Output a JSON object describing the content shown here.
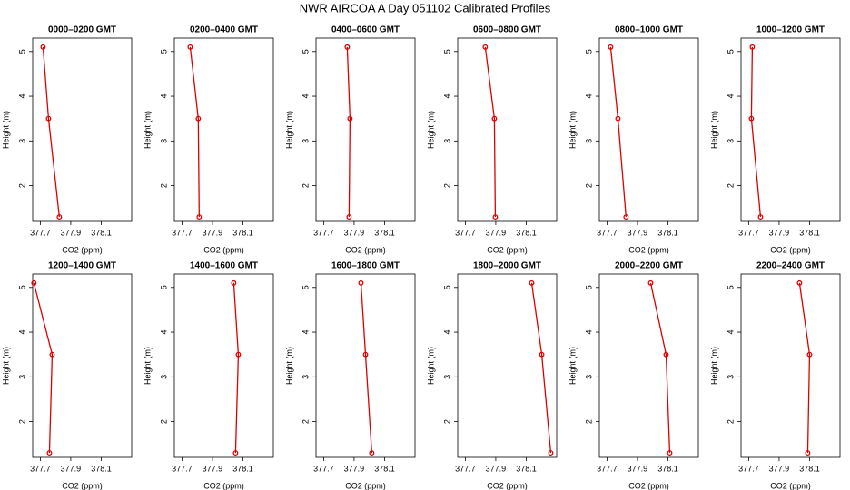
{
  "title": "NWR AIRCOA A  Day 051102  Calibrated Profiles",
  "chart_data": [
    {
      "type": "line",
      "title": "0000–0200 GMT",
      "x_label": "CO2 (ppm)",
      "y_label": "Height (m)",
      "x": [
        377.825,
        377.754,
        377.718
      ],
      "values": [
        1.3,
        3.5,
        5.1
      ],
      "color": "#dd0000",
      "xlim": [
        377.65,
        378.3
      ],
      "ylim": [
        1.2,
        5.3
      ],
      "xticks": [
        377.7,
        377.9,
        378.1
      ],
      "yticks": [
        2,
        3,
        4,
        5
      ]
    },
    {
      "type": "line",
      "title": "0200–0400 GMT",
      "x_label": "CO2 (ppm)",
      "y_label": "Height (m)",
      "x": [
        377.813,
        377.807,
        377.754
      ],
      "values": [
        1.3,
        3.5,
        5.1
      ],
      "color": "#dd0000",
      "xlim": [
        377.65,
        378.3
      ],
      "ylim": [
        1.2,
        5.3
      ],
      "xticks": [
        377.7,
        377.9,
        378.1
      ],
      "yticks": [
        2,
        3,
        4,
        5
      ]
    },
    {
      "type": "line",
      "title": "0400–0600 GMT",
      "x_label": "CO2 (ppm)",
      "y_label": "Height (m)",
      "x": [
        377.867,
        377.873,
        377.855
      ],
      "values": [
        1.3,
        3.5,
        5.1
      ],
      "color": "#dd0000",
      "xlim": [
        377.65,
        378.3
      ],
      "ylim": [
        1.2,
        5.3
      ],
      "xticks": [
        377.7,
        377.9,
        378.1
      ],
      "yticks": [
        2,
        3,
        4,
        5
      ]
    },
    {
      "type": "line",
      "title": "0600–0800 GMT",
      "x_label": "CO2 (ppm)",
      "y_label": "Height (m)",
      "x": [
        377.897,
        377.891,
        377.831
      ],
      "values": [
        1.3,
        3.5,
        5.1
      ],
      "color": "#dd0000",
      "xlim": [
        377.65,
        378.3
      ],
      "ylim": [
        1.2,
        5.3
      ],
      "xticks": [
        377.7,
        377.9,
        378.1
      ],
      "yticks": [
        2,
        3,
        4,
        5
      ]
    },
    {
      "type": "line",
      "title": "0800–1000 GMT",
      "x_label": "CO2 (ppm)",
      "y_label": "Height (m)",
      "x": [
        377.825,
        377.772,
        377.724
      ],
      "values": [
        1.3,
        3.5,
        5.1
      ],
      "color": "#dd0000",
      "xlim": [
        377.65,
        378.3
      ],
      "ylim": [
        1.2,
        5.3
      ],
      "xticks": [
        377.7,
        377.9,
        378.1
      ],
      "yticks": [
        2,
        3,
        4,
        5
      ]
    },
    {
      "type": "line",
      "title": "1000–1200 GMT",
      "x_label": "CO2 (ppm)",
      "y_label": "Height (m)",
      "x": [
        377.778,
        377.718,
        377.724
      ],
      "values": [
        1.3,
        3.5,
        5.1
      ],
      "color": "#dd0000",
      "xlim": [
        377.65,
        378.3
      ],
      "ylim": [
        1.2,
        5.3
      ],
      "xticks": [
        377.7,
        377.9,
        378.1
      ],
      "yticks": [
        2,
        3,
        4,
        5
      ]
    },
    {
      "type": "line",
      "title": "1200–1400 GMT",
      "x_label": "CO2 (ppm)",
      "y_label": "Height (m)",
      "x": [
        377.76,
        377.778,
        377.658
      ],
      "values": [
        1.3,
        3.5,
        5.1
      ],
      "color": "#dd0000",
      "xlim": [
        377.65,
        378.3
      ],
      "ylim": [
        1.2,
        5.3
      ],
      "xticks": [
        377.7,
        377.9,
        378.1
      ],
      "yticks": [
        2,
        3,
        4,
        5
      ]
    },
    {
      "type": "line",
      "title": "1400–1600 GMT",
      "x_label": "CO2 (ppm)",
      "y_label": "Height (m)",
      "x": [
        378.052,
        378.07,
        378.04
      ],
      "values": [
        1.3,
        3.5,
        5.1
      ],
      "color": "#dd0000",
      "xlim": [
        377.65,
        378.3
      ],
      "ylim": [
        1.2,
        5.3
      ],
      "xticks": [
        377.7,
        377.9,
        378.1
      ],
      "yticks": [
        2,
        3,
        4,
        5
      ]
    },
    {
      "type": "line",
      "title": "1600–1800 GMT",
      "x_label": "CO2 (ppm)",
      "y_label": "Height (m)",
      "x": [
        378.016,
        377.975,
        377.945
      ],
      "values": [
        1.3,
        3.5,
        5.1
      ],
      "color": "#dd0000",
      "xlim": [
        377.65,
        378.3
      ],
      "ylim": [
        1.2,
        5.3
      ],
      "xticks": [
        377.7,
        377.9,
        378.1
      ],
      "yticks": [
        2,
        3,
        4,
        5
      ]
    },
    {
      "type": "line",
      "title": "1800–2000 GMT",
      "x_label": "CO2 (ppm)",
      "y_label": "Height (m)",
      "x": [
        378.261,
        378.202,
        378.136
      ],
      "values": [
        1.3,
        3.5,
        5.1
      ],
      "color": "#dd0000",
      "xlim": [
        377.65,
        378.3
      ],
      "ylim": [
        1.2,
        5.3
      ],
      "xticks": [
        377.7,
        377.9,
        378.1
      ],
      "yticks": [
        2,
        3,
        4,
        5
      ]
    },
    {
      "type": "line",
      "title": "2000–2200 GMT",
      "x_label": "CO2 (ppm)",
      "y_label": "Height (m)",
      "x": [
        378.112,
        378.088,
        377.987
      ],
      "values": [
        1.3,
        3.5,
        5.1
      ],
      "color": "#dd0000",
      "xlim": [
        377.65,
        378.3
      ],
      "ylim": [
        1.2,
        5.3
      ],
      "xticks": [
        377.7,
        377.9,
        378.1
      ],
      "yticks": [
        2,
        3,
        4,
        5
      ]
    },
    {
      "type": "line",
      "title": "2200–2400 GMT",
      "x_label": "CO2 (ppm)",
      "y_label": "Height (m)",
      "x": [
        378.088,
        378.1,
        378.034
      ],
      "values": [
        1.3,
        3.5,
        5.1
      ],
      "color": "#dd0000",
      "xlim": [
        377.65,
        378.3
      ],
      "ylim": [
        1.2,
        5.3
      ],
      "xticks": [
        377.7,
        377.9,
        378.1
      ],
      "yticks": [
        2,
        3,
        4,
        5
      ]
    }
  ]
}
